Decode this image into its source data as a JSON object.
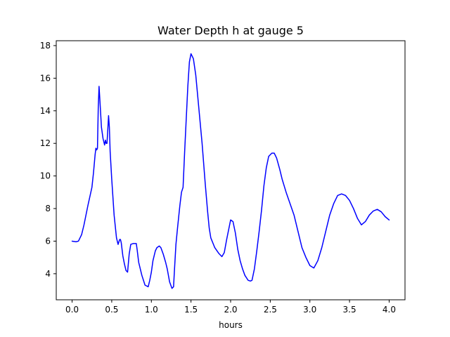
{
  "chart_data": {
    "type": "line",
    "title": "Water Depth h at gauge 5",
    "xlabel": "hours",
    "ylabel": "",
    "xlim": [
      -0.2,
      4.2
    ],
    "ylim": [
      2.4,
      18.3
    ],
    "xticks": [
      0.0,
      0.5,
      1.0,
      1.5,
      2.0,
      2.5,
      3.0,
      3.5,
      4.0
    ],
    "xtick_labels": [
      "0.0",
      "0.5",
      "1.0",
      "1.5",
      "2.0",
      "2.5",
      "3.0",
      "3.5",
      "4.0"
    ],
    "yticks": [
      4,
      6,
      8,
      10,
      12,
      14,
      16,
      18
    ],
    "ytick_labels": [
      "4",
      "6",
      "8",
      "10",
      "12",
      "14",
      "16",
      "18"
    ],
    "grid": false,
    "series": [
      {
        "color": "#0000ff",
        "x": [
          0.0,
          0.05,
          0.08,
          0.12,
          0.15,
          0.2,
          0.25,
          0.27,
          0.29,
          0.3,
          0.31,
          0.32,
          0.33,
          0.34,
          0.35,
          0.37,
          0.39,
          0.41,
          0.42,
          0.43,
          0.44,
          0.45,
          0.46,
          0.47,
          0.48,
          0.5,
          0.53,
          0.56,
          0.58,
          0.6,
          0.61,
          0.62,
          0.64,
          0.66,
          0.68,
          0.7,
          0.72,
          0.74,
          0.77,
          0.81,
          0.82,
          0.84,
          0.88,
          0.92,
          0.96,
          0.98,
          1.0,
          1.02,
          1.05,
          1.07,
          1.1,
          1.12,
          1.15,
          1.18,
          1.2,
          1.23,
          1.26,
          1.28,
          1.29,
          1.31,
          1.33,
          1.36,
          1.38,
          1.4,
          1.42,
          1.44,
          1.46,
          1.48,
          1.5,
          1.53,
          1.56,
          1.6,
          1.64,
          1.68,
          1.71,
          1.73,
          1.75,
          1.8,
          1.85,
          1.89,
          1.92,
          1.95,
          2.0,
          2.03,
          2.06,
          2.09,
          2.12,
          2.15,
          2.18,
          2.22,
          2.25,
          2.27,
          2.3,
          2.33,
          2.36,
          2.39,
          2.42,
          2.45,
          2.48,
          2.52,
          2.55,
          2.58,
          2.62,
          2.65,
          2.7,
          2.75,
          2.8,
          2.85,
          2.9,
          2.95,
          3.0,
          3.05,
          3.1,
          3.15,
          3.2,
          3.25,
          3.3,
          3.35,
          3.4,
          3.45,
          3.5,
          3.55,
          3.6,
          3.65,
          3.7,
          3.75,
          3.8,
          3.85,
          3.9,
          3.95,
          4.0
        ],
        "y": [
          6.0,
          5.96,
          6.0,
          6.4,
          7.0,
          8.2,
          9.3,
          10.2,
          11.3,
          11.7,
          11.6,
          11.7,
          14.2,
          15.5,
          14.7,
          13.0,
          12.3,
          11.9,
          12.2,
          12.0,
          12.0,
          12.8,
          13.7,
          13.0,
          11.5,
          9.8,
          7.6,
          6.2,
          5.8,
          6.1,
          6.1,
          5.9,
          5.1,
          4.6,
          4.2,
          4.1,
          5.2,
          5.8,
          5.85,
          5.85,
          5.5,
          4.7,
          3.9,
          3.3,
          3.2,
          3.6,
          4.1,
          4.8,
          5.4,
          5.6,
          5.7,
          5.6,
          5.2,
          4.7,
          4.3,
          3.5,
          3.1,
          3.2,
          4.1,
          5.8,
          6.8,
          8.2,
          9.0,
          9.3,
          11.5,
          13.5,
          15.5,
          17.0,
          17.5,
          17.2,
          16.2,
          14.1,
          12.0,
          9.5,
          7.8,
          6.8,
          6.2,
          5.6,
          5.25,
          5.05,
          5.3,
          6.1,
          7.3,
          7.2,
          6.5,
          5.5,
          4.8,
          4.3,
          3.9,
          3.6,
          3.55,
          3.6,
          4.3,
          5.4,
          6.6,
          7.9,
          9.4,
          10.5,
          11.2,
          11.4,
          11.4,
          11.1,
          10.4,
          9.8,
          9.0,
          8.3,
          7.6,
          6.6,
          5.6,
          5.0,
          4.5,
          4.35,
          4.8,
          5.6,
          6.6,
          7.6,
          8.3,
          8.8,
          8.9,
          8.8,
          8.5,
          8.0,
          7.4,
          7.0,
          7.2,
          7.6,
          7.85,
          7.95,
          7.8,
          7.5,
          7.3
        ]
      }
    ]
  }
}
